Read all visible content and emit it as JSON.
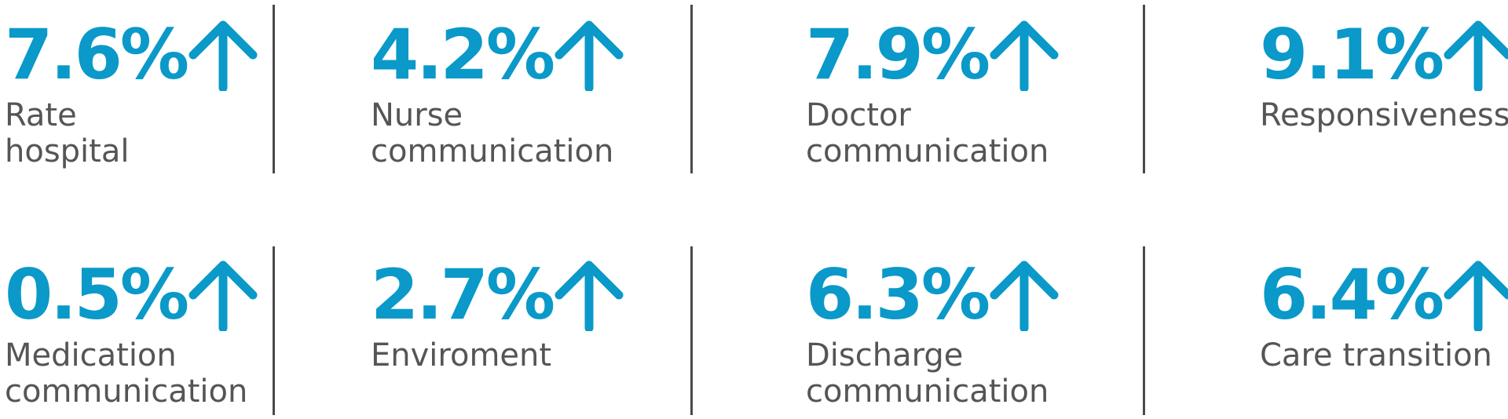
{
  "colors": {
    "accent": "#0a99c9",
    "label_text": "#555555",
    "divider": "#4a4a4a"
  },
  "arrow_icon": "arrow-up-icon",
  "stats": [
    {
      "value": "7.6%",
      "label": "Rate\nhospital"
    },
    {
      "value": "4.2%",
      "label": "Nurse\ncommunication"
    },
    {
      "value": "7.9%",
      "label": "Doctor\ncommunication"
    },
    {
      "value": "9.1%",
      "label": "Responsiveness"
    },
    {
      "value": "0.5%",
      "label": "Medication\ncommunication"
    },
    {
      "value": "2.7%",
      "label": "Enviroment"
    },
    {
      "value": "6.3%",
      "label": "Discharge\ncommunication"
    },
    {
      "value": "6.4%",
      "label": "Care transition"
    }
  ]
}
